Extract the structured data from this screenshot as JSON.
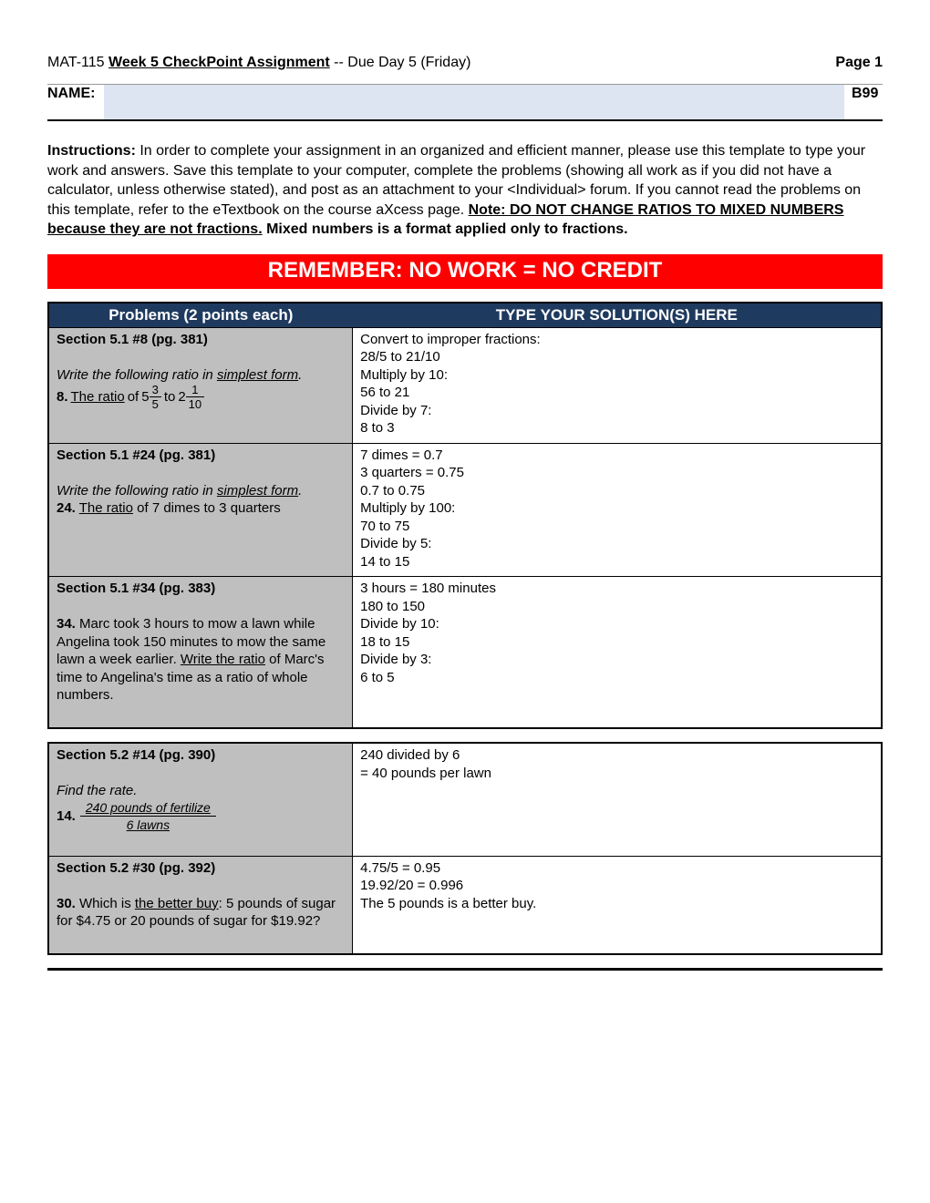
{
  "header": {
    "course": "MAT-115",
    "assignment": "Week 5 CheckPoint Assignment",
    "due": " -- Due Day 5 (Friday)",
    "page": "Page 1"
  },
  "name_row": {
    "label": "NAME:",
    "grade": "B99"
  },
  "instructions": {
    "label": "Instructions:",
    "body1": " In order to complete your assignment in an organized and efficient manner, please use this template to type your work and answers. Save this template to your computer, complete the problems (showing all work as if you did not have a calculator, unless otherwise stated), and post as an attachment to your <Individual> forum. If you cannot read the problems on this template, refer to the eTextbook on the course aXcess page. ",
    "note1": "Note: DO NOT CHANGE RATIOS TO MIXED NUMBERS because they are not fractions.",
    "note2": " Mixed numbers is a format applied only to fractions."
  },
  "banner": "REMEMBER: NO WORK = NO CREDIT",
  "th": {
    "problems": "Problems (2 points each)",
    "solutions": "TYPE YOUR SOLUTION(S) HERE"
  },
  "rows1": [
    {
      "section": "Section 5.1 #8 (pg. 381)",
      "instruction_prefix": "Write the following ratio in ",
      "instruction_ul": "simplest form",
      "num": "8.",
      "ratio_prefix": "The ratio",
      "of": " of ",
      "m1w": "5",
      "m1n": "3",
      "m1d": "5",
      "to": " to ",
      "m2w": "2",
      "m2n": "1",
      "m2d": "10",
      "sol": "Convert to improper fractions:\n28/5 to 21/10\nMultiply by 10:\n56 to 21\nDivide by 7:\n8 to 3"
    },
    {
      "section": "Section 5.1 #24 (pg. 381)",
      "instruction_prefix": "Write the following ratio in ",
      "instruction_ul": "simplest form",
      "num": "24.",
      "ratio_prefix": "The ratio",
      "rest": " of 7 dimes to 3 quarters",
      "sol": "7 dimes = 0.7\n3 quarters = 0.75\n0.7 to 0.75\nMultiply by 100:\n70 to 75\nDivide by 5:\n14 to 15"
    },
    {
      "section": "Section 5.1 #34 (pg. 383)",
      "num": "34.",
      "body_a": " Marc took 3 hours to mow a lawn while Angelina took 150 minutes to mow the same lawn a week earlier. ",
      "body_ul": "Write the ratio",
      "body_b": " of Marc's time to Angelina's time as a ratio of whole numbers.",
      "sol": "3 hours = 180 minutes\n180 to 150\nDivide by 10:\n18 to 15\nDivide by 3:\n6 to 5"
    }
  ],
  "rows2": [
    {
      "section": "Section 5.2 #14 (pg. 390)",
      "instruction": "Find the rate.",
      "num": "14.",
      "frac_n": "240 pounds of  fertilize",
      "frac_d": "6 lawns",
      "sol": "240 divided by 6\n= 40 pounds per lawn"
    },
    {
      "section": "Section 5.2 #30 (pg. 392)",
      "num": "30.",
      "body_a": " Which is ",
      "body_ul": "the better buy",
      "body_b": ": 5 pounds of sugar for $4.75 or 20 pounds of sugar for $19.92?",
      "sol": "4.75/5 = 0.95\n19.92/20 = 0.996\nThe 5 pounds is a better buy."
    }
  ]
}
